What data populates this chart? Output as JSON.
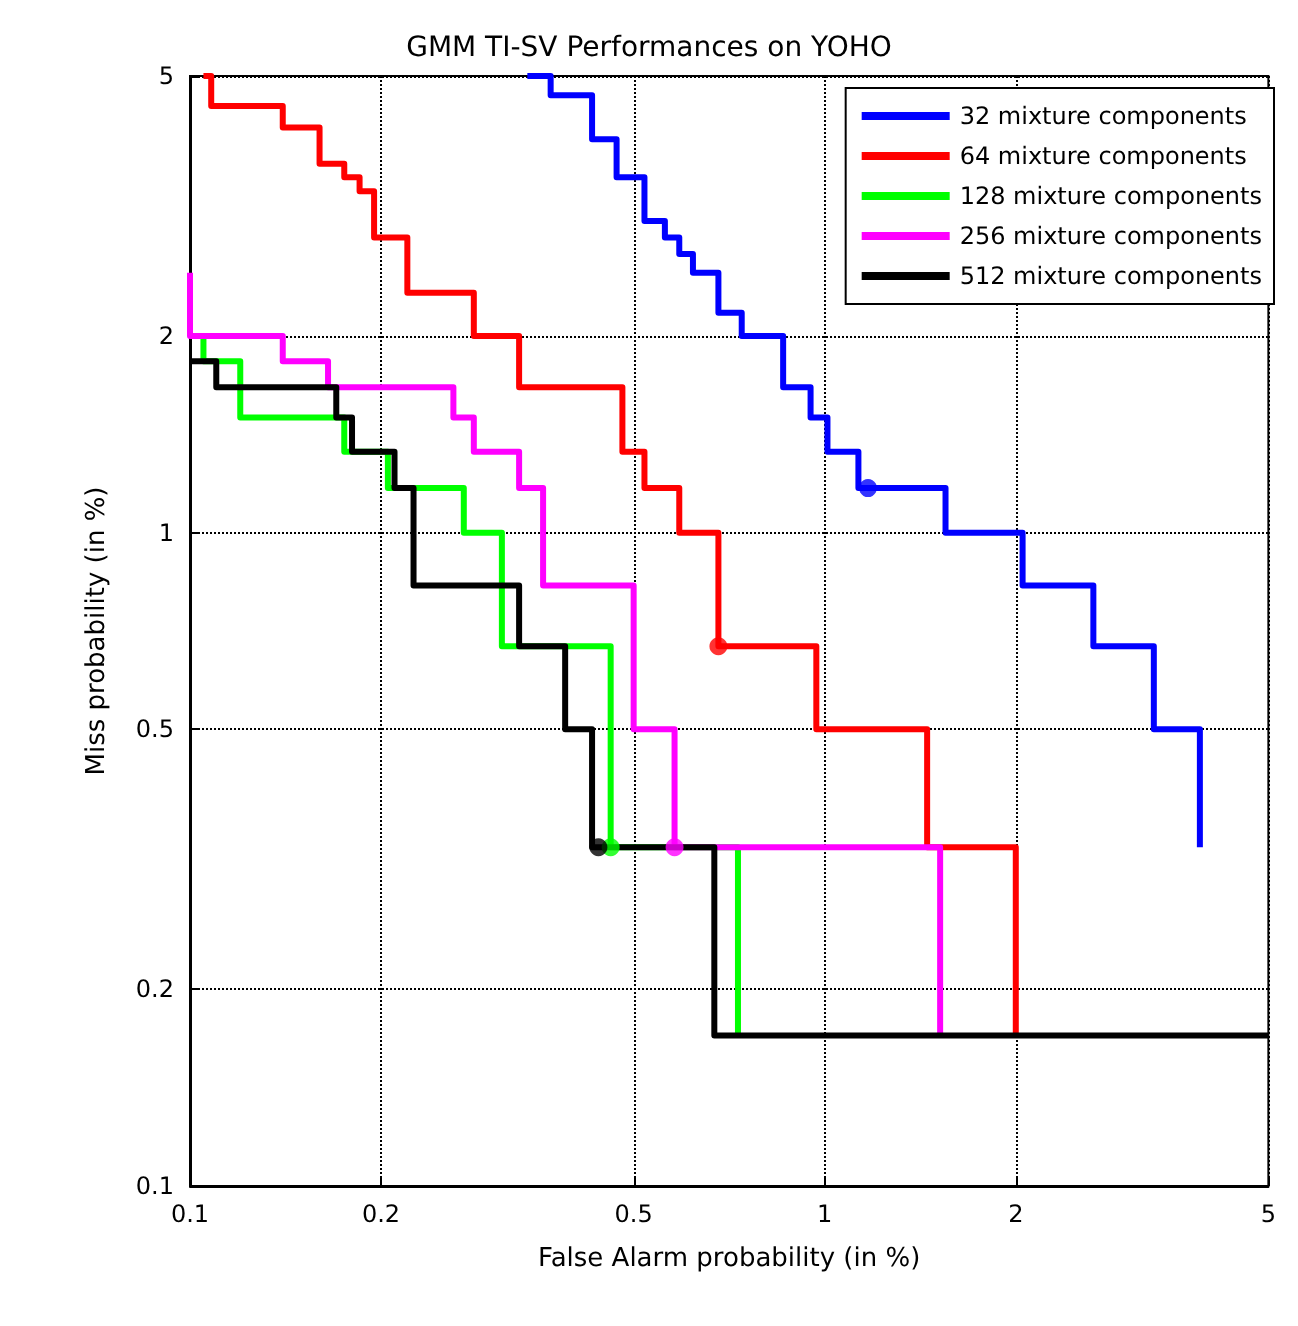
{
  "chart_data": {
    "type": "step",
    "title": "GMM TI-SV Performances on YOHO",
    "xlabel": "False Alarm probability (in %)",
    "ylabel": "Miss probability (in %)",
    "log": "xy",
    "grid": true,
    "legend": "top right",
    "xlim": [
      0.1,
      5
    ],
    "xticks": [
      0.1,
      0.2,
      0.5,
      1,
      2,
      5
    ],
    "ylim": [
      0.1,
      5
    ],
    "yticks": [
      0.1,
      0.2,
      0.5,
      1,
      2,
      5
    ],
    "series": [
      {
        "name": "32 mixture components",
        "color": "#0000ff",
        "x": [
          0.34,
          0.37,
          0.43,
          0.47,
          0.52,
          0.56,
          0.59,
          0.62,
          0.68,
          0.74,
          0.86,
          0.95,
          1.01,
          1.13,
          1.55,
          2.05,
          2.65,
          3.3,
          3.9
        ],
        "values": [
          5,
          4.67,
          4.0,
          3.5,
          3.0,
          2.83,
          2.67,
          2.5,
          2.17,
          2.0,
          1.67,
          1.5,
          1.33,
          1.17,
          1.0,
          0.83,
          0.67,
          0.5,
          0.33
        ]
      },
      {
        "name": "64 mixture components",
        "color": "#ff0000",
        "x": [
          0.105,
          0.108,
          0.14,
          0.16,
          0.175,
          0.185,
          0.195,
          0.22,
          0.28,
          0.33,
          0.48,
          0.52,
          0.59,
          0.68,
          0.97,
          1.45,
          2.0
        ],
        "values": [
          5,
          4.5,
          4.17,
          3.67,
          3.5,
          3.33,
          2.83,
          2.33,
          2.0,
          1.67,
          1.33,
          1.17,
          1.0,
          0.67,
          0.5,
          0.33,
          0.17
        ]
      },
      {
        "name": "128 mixture components",
        "color": "#00ff00",
        "x": [
          0.1,
          0.105,
          0.12,
          0.175,
          0.205,
          0.27,
          0.31,
          0.46,
          0.73
        ],
        "values": [
          2.0,
          1.83,
          1.5,
          1.33,
          1.17,
          1.0,
          0.67,
          0.33,
          0.17
        ]
      },
      {
        "name": "256 mixture components",
        "color": "#ff00ff",
        "x": [
          0.1,
          0.1,
          0.14,
          0.165,
          0.26,
          0.28,
          0.33,
          0.36,
          0.5,
          0.58,
          1.52
        ],
        "values": [
          2.5,
          2.0,
          1.83,
          1.67,
          1.5,
          1.33,
          1.17,
          0.83,
          0.5,
          0.33,
          0.17
        ]
      },
      {
        "name": "512 mixture components",
        "color": "#000000",
        "x": [
          0.1,
          0.11,
          0.17,
          0.18,
          0.21,
          0.225,
          0.33,
          0.39,
          0.43,
          0.67,
          5
        ],
        "values": [
          1.83,
          1.67,
          1.5,
          1.33,
          1.17,
          0.83,
          0.67,
          0.5,
          0.33,
          0.17,
          0.17
        ]
      },
      {
        "type": "scatter",
        "x": [
          1.17,
          0.68,
          0.46,
          0.58,
          0.44
        ],
        "values": [
          1.17,
          0.67,
          0.33,
          0.33,
          0.33
        ],
        "colors": [
          "#0000ff",
          "#ff0000",
          "#00ff00",
          "#ff00ff",
          "#000000"
        ]
      }
    ]
  }
}
